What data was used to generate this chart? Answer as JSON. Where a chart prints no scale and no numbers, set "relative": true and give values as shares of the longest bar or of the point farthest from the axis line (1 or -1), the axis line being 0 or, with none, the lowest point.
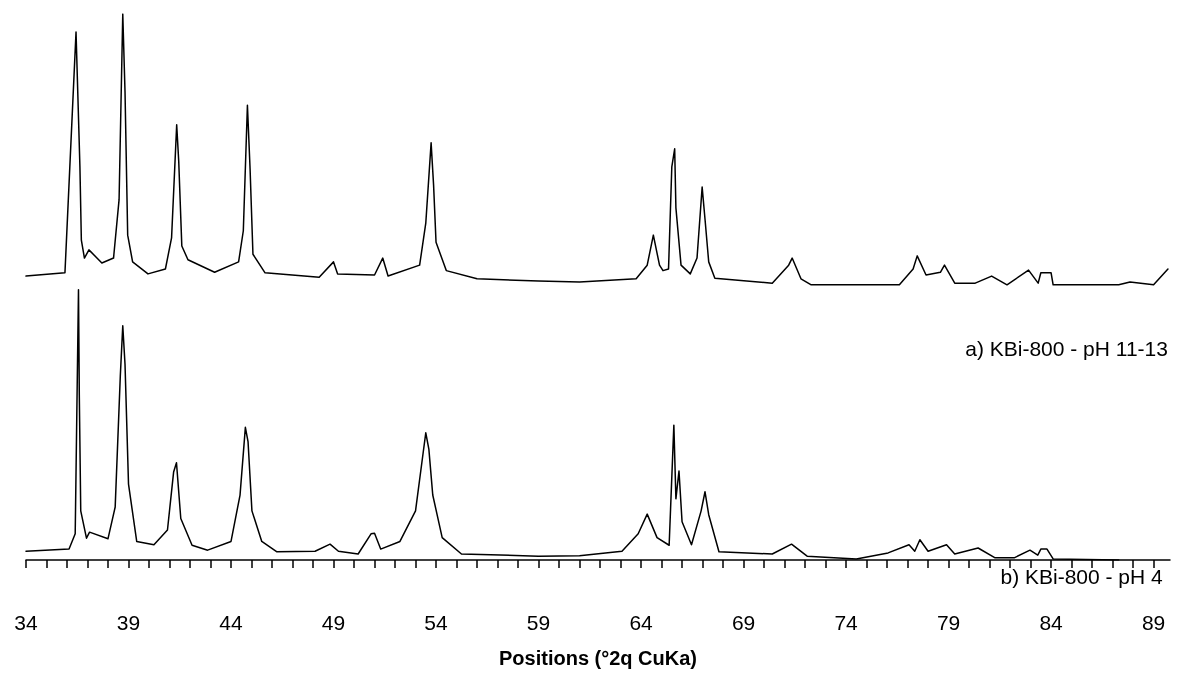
{
  "chart_data": {
    "type": "line",
    "relative": true,
    "xlabel": "Positions (°2q CuKa)",
    "xlim": [
      34,
      89.8
    ],
    "xticks": [
      34,
      {
        "value": 35,
        "label": null
      },
      {
        "value": 36,
        "label": null
      },
      {
        "value": 37,
        "label": null
      },
      {
        "value": 38,
        "label": null
      },
      39,
      {
        "value": 40,
        "label": null
      },
      {
        "value": 41,
        "label": null
      },
      {
        "value": 42,
        "label": null
      },
      {
        "value": 43,
        "label": null
      },
      44,
      {
        "value": 45,
        "label": null
      },
      {
        "value": 46,
        "label": null
      },
      {
        "value": 47,
        "label": null
      },
      {
        "value": 48,
        "label": null
      },
      49,
      {
        "value": 50,
        "label": null
      },
      {
        "value": 51,
        "label": null
      },
      {
        "value": 52,
        "label": null
      },
      {
        "value": 53,
        "label": null
      },
      54,
      {
        "value": 55,
        "label": null
      },
      {
        "value": 56,
        "label": null
      },
      {
        "value": 57,
        "label": null
      },
      {
        "value": 58,
        "label": null
      },
      59,
      {
        "value": 60,
        "label": null
      },
      {
        "value": 61,
        "label": null
      },
      {
        "value": 62,
        "label": null
      },
      {
        "value": 63,
        "label": null
      },
      64,
      {
        "value": 65,
        "label": null
      },
      {
        "value": 66,
        "label": null
      },
      {
        "value": 67,
        "label": null
      },
      {
        "value": 68,
        "label": null
      },
      69,
      {
        "value": 70,
        "label": null
      },
      {
        "value": 71,
        "label": null
      },
      {
        "value": 72,
        "label": null
      },
      {
        "value": 73,
        "label": null
      },
      74,
      {
        "value": 75,
        "label": null
      },
      {
        "value": 76,
        "label": null
      },
      {
        "value": 77,
        "label": null
      },
      {
        "value": 78,
        "label": null
      },
      79,
      {
        "value": 80,
        "label": null
      },
      {
        "value": 81,
        "label": null
      },
      {
        "value": 82,
        "label": null
      },
      {
        "value": 83,
        "label": null
      },
      84,
      {
        "value": 85,
        "label": null
      },
      {
        "value": 86,
        "label": null
      },
      {
        "value": 87,
        "label": null
      },
      {
        "value": 88,
        "label": null
      },
      89
    ],
    "grid": false,
    "legend": false,
    "marker": "none",
    "line_style": "solid",
    "series": [
      {
        "name": "a) KBi-800 - pH 11-13",
        "color": "#000000",
        "x": [
          34,
          35.9,
          36.44,
          36.63,
          36.7,
          36.85,
          37.07,
          37.7,
          38.27,
          38.54,
          38.72,
          38.83,
          38.96,
          39.2,
          39.95,
          40.8,
          41.1,
          41.35,
          41.45,
          41.6,
          41.9,
          43.2,
          44.37,
          44.6,
          44.8,
          44.93,
          45.07,
          45.66,
          48.3,
          49.0,
          49.2,
          51.0,
          51.4,
          51.66,
          53.2,
          53.5,
          53.76,
          53.88,
          54.0,
          54.5,
          56,
          59,
          61.0,
          63.76,
          64.3,
          64.6,
          64.9,
          65.07,
          65.34,
          65.5,
          65.64,
          65.7,
          65.95,
          66.4,
          66.73,
          66.98,
          67.12,
          67.3,
          67.6,
          70.4,
          71.2,
          71.37,
          71.8,
          72.3,
          76.6,
          77.27,
          77.47,
          77.9,
          78.6,
          78.8,
          79.3,
          80.3,
          81.1,
          81.85,
          82.9,
          83.37,
          83.5,
          84.0,
          84.1,
          87.3,
          87.85,
          89.0,
          89.7
        ],
        "values": [
          0.52,
          0.526,
          0.967,
          0.72,
          0.586,
          0.553,
          0.568,
          0.544,
          0.553,
          0.66,
          1.0,
          0.857,
          0.595,
          0.546,
          0.524,
          0.533,
          0.59,
          0.797,
          0.73,
          0.575,
          0.55,
          0.527,
          0.546,
          0.603,
          0.833,
          0.716,
          0.56,
          0.526,
          0.518,
          0.546,
          0.524,
          0.522,
          0.553,
          0.52,
          0.54,
          0.617,
          0.764,
          0.687,
          0.582,
          0.53,
          0.515,
          0.511,
          0.509,
          0.515,
          0.54,
          0.595,
          0.54,
          0.53,
          0.533,
          0.72,
          0.753,
          0.645,
          0.54,
          0.524,
          0.553,
          0.683,
          0.624,
          0.546,
          0.516,
          0.507,
          0.54,
          0.553,
          0.515,
          0.504,
          0.504,
          0.533,
          0.557,
          0.522,
          0.527,
          0.54,
          0.507,
          0.507,
          0.52,
          0.504,
          0.531,
          0.507,
          0.526,
          0.526,
          0.504,
          0.504,
          0.509,
          0.504,
          0.533
        ]
      },
      {
        "name": "b) KBi-800 - pH 4",
        "color": "#000000",
        "x": [
          34,
          36.1,
          36.4,
          36.56,
          36.6,
          36.67,
          36.95,
          37.1,
          38.0,
          38.35,
          38.6,
          38.72,
          38.83,
          39.0,
          39.4,
          40.24,
          40.9,
          41.2,
          41.34,
          41.55,
          42.1,
          42.86,
          44.0,
          44.44,
          44.7,
          44.83,
          45.02,
          45.5,
          46.24,
          48.1,
          48.83,
          49.24,
          50.2,
          50.83,
          51.0,
          51.3,
          52.24,
          53.0,
          53.37,
          53.5,
          53.65,
          53.84,
          54.3,
          55.24,
          59.0,
          61.0,
          63.07,
          63.86,
          64.3,
          64.78,
          65.37,
          65.6,
          65.7,
          65.85,
          66.0,
          66.46,
          66.93,
          67.12,
          67.3,
          67.8,
          70.4,
          71.34,
          72.1,
          74.5,
          76.05,
          77.07,
          77.35,
          77.6,
          78.0,
          78.9,
          79.3,
          80.44,
          81.27,
          82.2,
          82.97,
          83.35,
          83.5,
          83.8,
          84.1,
          87.3
        ],
        "values": [
          0.016,
          0.02,
          0.048,
          0.495,
          0.302,
          0.09,
          0.04,
          0.051,
          0.039,
          0.097,
          0.337,
          0.429,
          0.358,
          0.139,
          0.034,
          0.028,
          0.055,
          0.161,
          0.178,
          0.076,
          0.027,
          0.018,
          0.034,
          0.119,
          0.243,
          0.217,
          0.09,
          0.034,
          0.015,
          0.016,
          0.029,
          0.016,
          0.011,
          0.048,
          0.049,
          0.02,
          0.034,
          0.09,
          0.196,
          0.233,
          0.203,
          0.119,
          0.041,
          0.011,
          0.007,
          0.008,
          0.016,
          0.048,
          0.084,
          0.041,
          0.027,
          0.247,
          0.112,
          0.163,
          0.07,
          0.028,
          0.09,
          0.125,
          0.083,
          0.015,
          0.011,
          0.029,
          0.007,
          0.002,
          0.013,
          0.028,
          0.016,
          0.037,
          0.016,
          0.028,
          0.011,
          0.022,
          0.004,
          0.004,
          0.018,
          0.009,
          0.02,
          0.02,
          0.002,
          0
        ]
      }
    ]
  }
}
